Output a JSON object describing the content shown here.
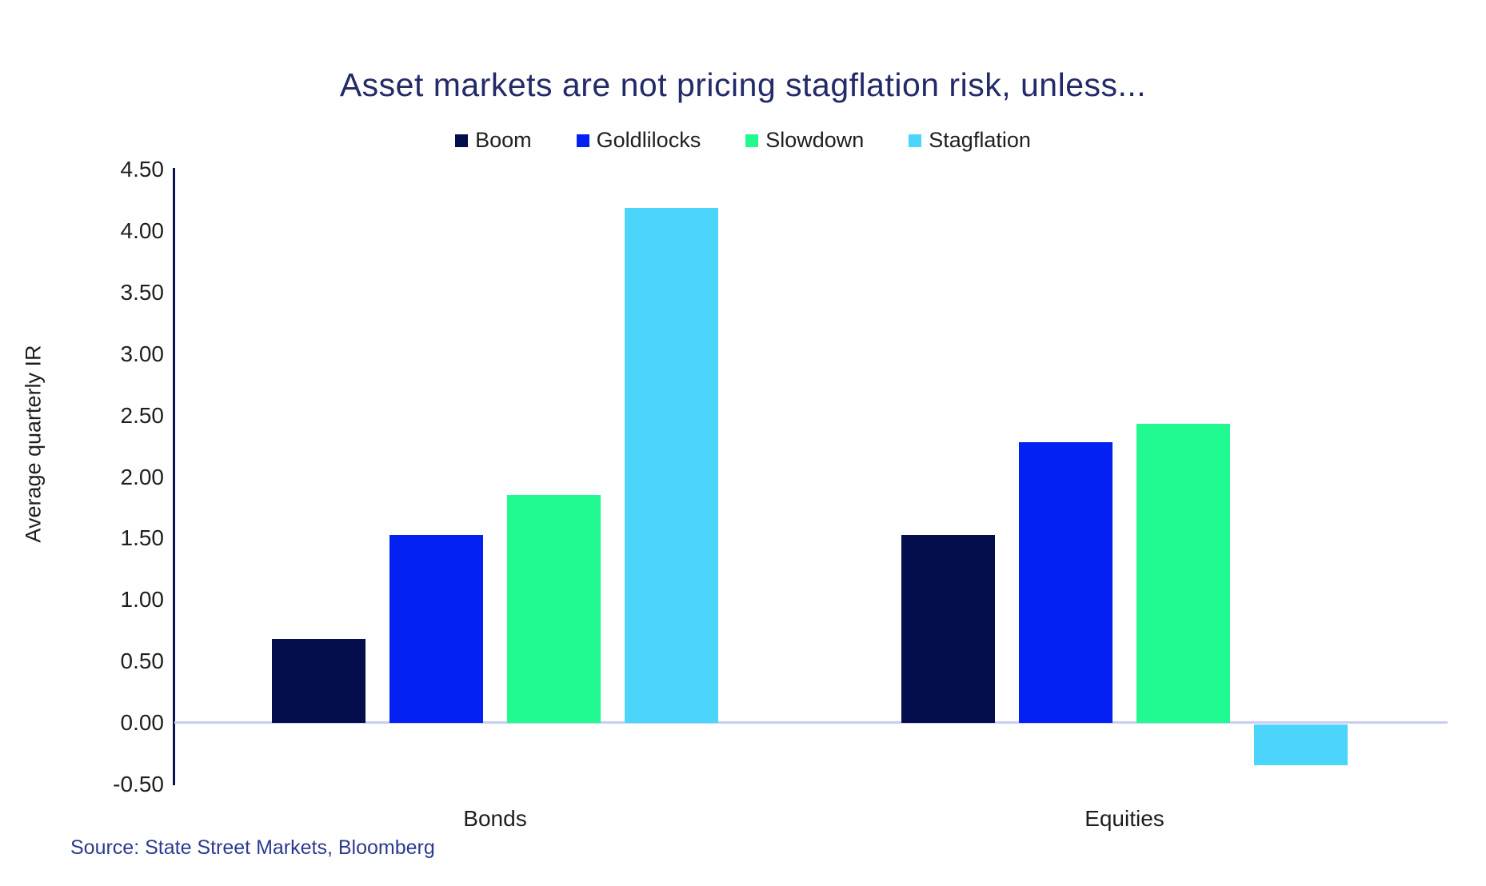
{
  "title": "Asset markets are not pricing stagflation risk, unless...",
  "source": "Source: State Street Markets, Bloomberg",
  "chart_data": {
    "type": "bar",
    "title": "Asset markets are not pricing stagflation risk, unless...",
    "categories": [
      "Bonds",
      "Equities"
    ],
    "series": [
      {
        "name": "Boom",
        "color": "#050e4d",
        "values": [
          0.68,
          1.53
        ]
      },
      {
        "name": "Goldlilocks",
        "color": "#0421f3",
        "values": [
          1.53,
          2.28
        ]
      },
      {
        "name": "Slowdown",
        "color": "#21fa90",
        "values": [
          1.85,
          2.43
        ]
      },
      {
        "name": "Stagflation",
        "color": "#4cd5fb",
        "values": [
          4.19,
          -0.33
        ]
      }
    ],
    "xlabel": "",
    "ylabel": "Average quarterly IR",
    "ylim": [
      -0.5,
      4.5
    ],
    "ytick_step": 0.5,
    "ytick_labels": [
      "4.50",
      "4.00",
      "3.50",
      "3.00",
      "2.50",
      "2.00",
      "1.50",
      "1.00",
      "0.50",
      "0.00",
      "-0.50"
    ],
    "grid": "zero-baseline-only",
    "legend_position": "top-center"
  },
  "colors": {
    "title_text": "#232a68",
    "axis_line": "#0a1454",
    "zero_line": "#c9cdf2",
    "tick_text": "#1f1f1f",
    "legend_text": "#1f1f1f",
    "source_text": "#2b3a8f"
  }
}
